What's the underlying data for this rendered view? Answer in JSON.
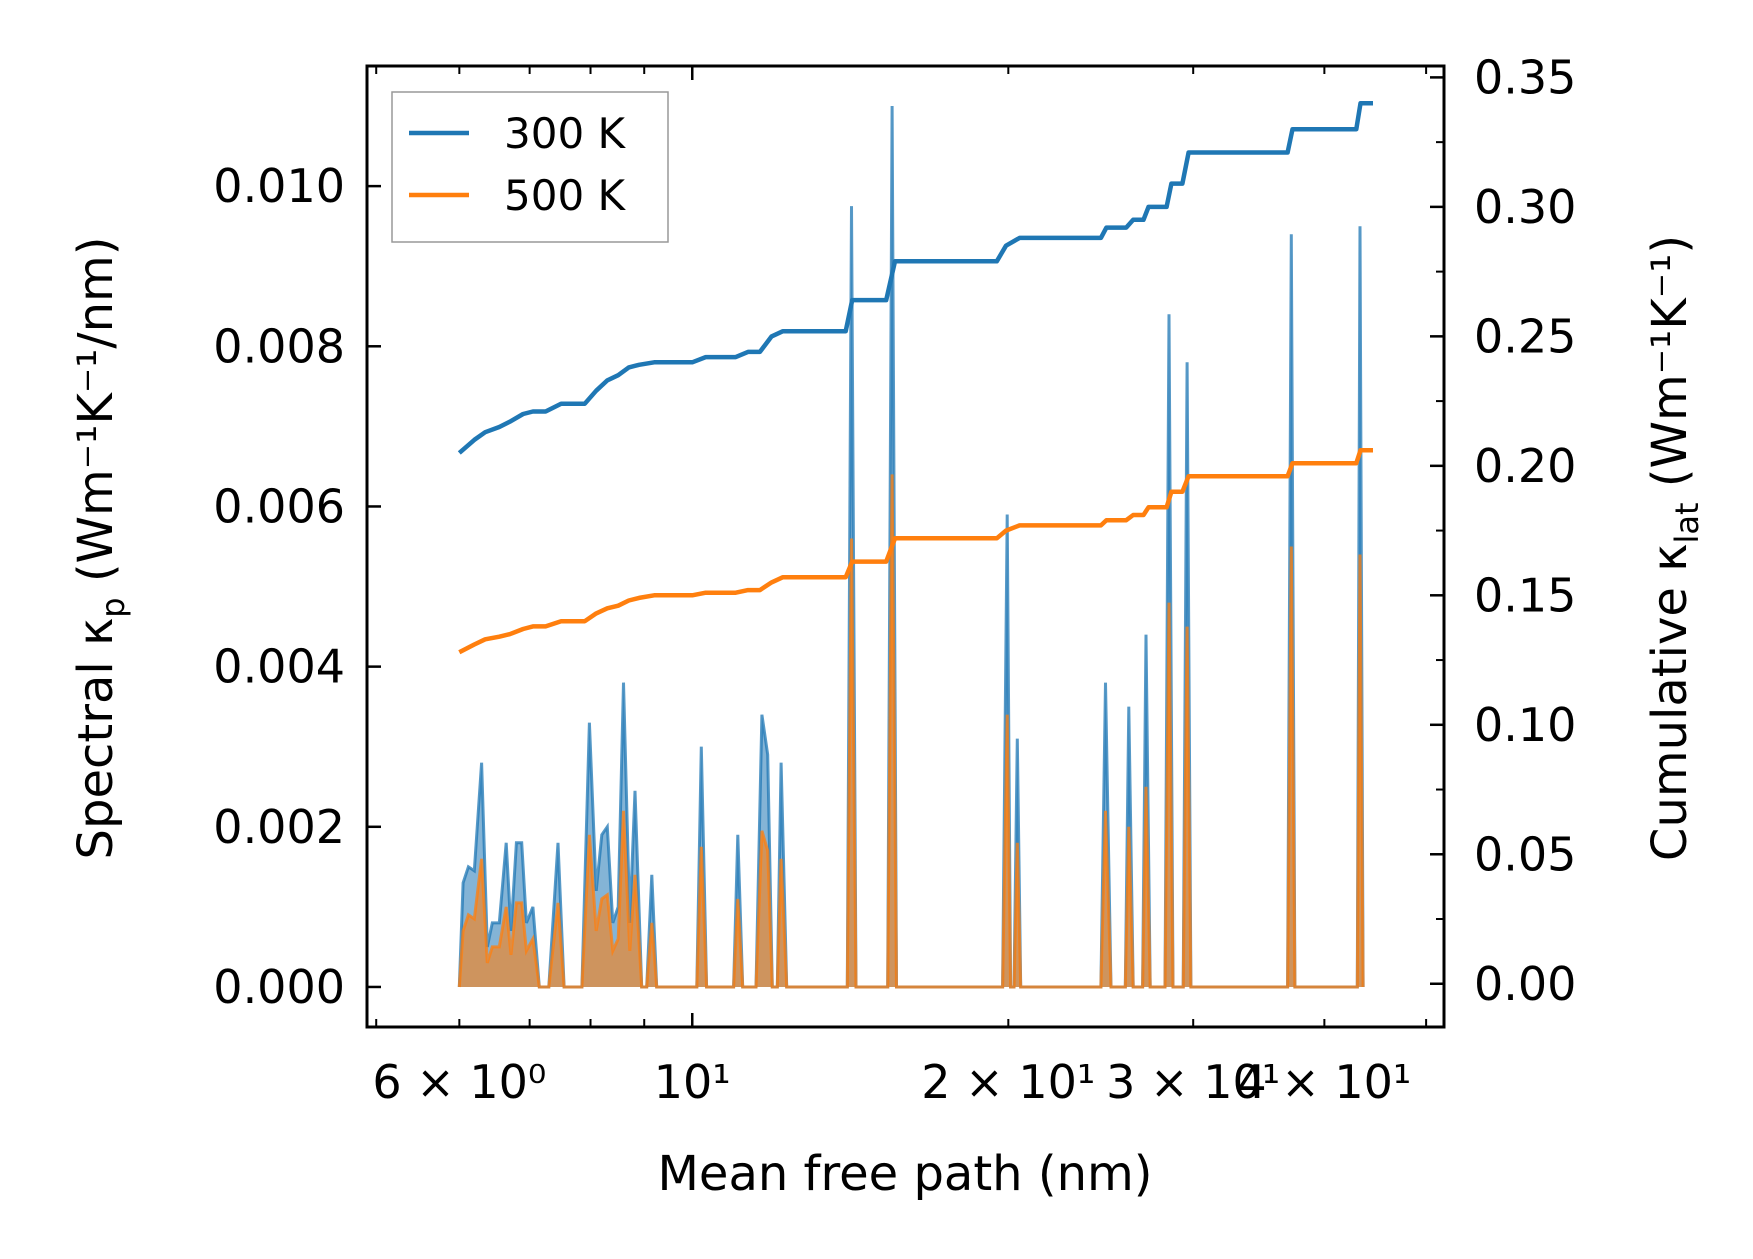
{
  "chart_data": {
    "type": "line",
    "xlabel": "Mean free path (nm)",
    "ylabel_left": {
      "main": "Spectral κ",
      "sub": "p",
      "unit": " (Wm⁻¹K⁻¹/nm)"
    },
    "ylabel_right": {
      "main": "Cumulative κ",
      "sub": "lat",
      "unit": " (Wm⁻¹K⁻¹)"
    },
    "x_scale": "log",
    "xlim": [
      4.9,
      52
    ],
    "ylim_left": [
      -0.0005,
      0.0115
    ],
    "ylim_right": [
      -0.0167,
      0.3544
    ],
    "x_ticks": [
      {
        "value": 6,
        "label": "6 × 10⁰"
      },
      {
        "value": 10,
        "label": "10¹"
      },
      {
        "value": 20,
        "label": "2 × 10¹"
      },
      {
        "value": 30,
        "label": "3 × 10¹"
      },
      {
        "value": 40,
        "label": "4 × 10¹"
      }
    ],
    "y_ticks_left": [
      "0.000",
      "0.002",
      "0.004",
      "0.006",
      "0.008",
      "0.010"
    ],
    "y_ticks_right": [
      "0.00",
      "0.05",
      "0.10",
      "0.15",
      "0.20",
      "0.25",
      "0.30",
      "0.35"
    ],
    "legend": [
      {
        "label": "300 K",
        "color": "#1f77b4"
      },
      {
        "label": "500 K",
        "color": "#ff7f0e"
      }
    ],
    "spectral_series": [
      {
        "name": "300 K",
        "color": "#1f77b4",
        "points": [
          [
            6.0,
            0
          ],
          [
            6.05,
            0.0013
          ],
          [
            6.12,
            0.0015
          ],
          [
            6.2,
            0.00145
          ],
          [
            6.3,
            0.0028
          ],
          [
            6.38,
            0.0005
          ],
          [
            6.45,
            0.0008
          ],
          [
            6.55,
            0.0008
          ],
          [
            6.65,
            0.0018
          ],
          [
            6.72,
            0.0007
          ],
          [
            6.8,
            0.0018
          ],
          [
            6.88,
            0.0018
          ],
          [
            6.95,
            0.0008
          ],
          [
            7.05,
            0.001
          ],
          [
            7.15,
            0
          ],
          [
            7.3,
            0
          ],
          [
            7.45,
            0.0018
          ],
          [
            7.55,
            0
          ],
          [
            7.85,
            0
          ],
          [
            7.98,
            0.0033
          ],
          [
            8.1,
            0.0012
          ],
          [
            8.2,
            0.0019
          ],
          [
            8.3,
            0.002
          ],
          [
            8.4,
            0.0008
          ],
          [
            8.5,
            0.001
          ],
          [
            8.6,
            0.0038
          ],
          [
            8.72,
            0.0008
          ],
          [
            8.82,
            0.00245
          ],
          [
            8.95,
            0
          ],
          [
            9.05,
            0
          ],
          [
            9.15,
            0.0014
          ],
          [
            9.25,
            0
          ],
          [
            10.1,
            0
          ],
          [
            10.2,
            0.003
          ],
          [
            10.32,
            0
          ],
          [
            10.95,
            0
          ],
          [
            11.05,
            0.0019
          ],
          [
            11.17,
            0
          ],
          [
            11.5,
            0
          ],
          [
            11.65,
            0.0034
          ],
          [
            11.8,
            0.0029
          ],
          [
            11.92,
            0
          ],
          [
            12.05,
            0
          ],
          [
            12.15,
            0.0028
          ],
          [
            12.3,
            0
          ],
          [
            14.05,
            0
          ],
          [
            14.18,
            0.00975
          ],
          [
            14.32,
            0
          ],
          [
            15.35,
            0
          ],
          [
            15.5,
            0.011
          ],
          [
            15.65,
            0
          ],
          [
            19.75,
            0
          ],
          [
            19.95,
            0.0059
          ],
          [
            20.1,
            0
          ],
          [
            20.25,
            0
          ],
          [
            20.4,
            0.0031
          ],
          [
            20.55,
            0
          ],
          [
            24.5,
            0
          ],
          [
            24.75,
            0.0038
          ],
          [
            25.05,
            0
          ],
          [
            25.85,
            0
          ],
          [
            26.05,
            0.0035
          ],
          [
            26.3,
            0
          ],
          [
            26.85,
            0
          ],
          [
            27.05,
            0.0044
          ],
          [
            27.3,
            0
          ],
          [
            28.2,
            0
          ],
          [
            28.45,
            0.0084
          ],
          [
            28.7,
            0
          ],
          [
            29.35,
            0
          ],
          [
            29.6,
            0.0078
          ],
          [
            29.85,
            0
          ],
          [
            36.9,
            0
          ],
          [
            37.2,
            0.0094
          ],
          [
            37.5,
            0
          ],
          [
            43.0,
            0
          ],
          [
            43.25,
            0.0095
          ],
          [
            43.55,
            0
          ]
        ]
      },
      {
        "name": "500 K",
        "color": "#ff7f0e",
        "points": [
          [
            6.0,
            0
          ],
          [
            6.05,
            0.0007
          ],
          [
            6.12,
            0.0009
          ],
          [
            6.2,
            0.00085
          ],
          [
            6.3,
            0.0016
          ],
          [
            6.38,
            0.0003
          ],
          [
            6.45,
            0.0005
          ],
          [
            6.55,
            0.0005
          ],
          [
            6.65,
            0.001
          ],
          [
            6.72,
            0.0004
          ],
          [
            6.8,
            0.00105
          ],
          [
            6.88,
            0.00105
          ],
          [
            6.95,
            0.00045
          ],
          [
            7.05,
            0.0006
          ],
          [
            7.15,
            0
          ],
          [
            7.3,
            0
          ],
          [
            7.45,
            0.00105
          ],
          [
            7.55,
            0
          ],
          [
            7.85,
            0
          ],
          [
            7.98,
            0.0019
          ],
          [
            8.1,
            0.0007
          ],
          [
            8.2,
            0.0011
          ],
          [
            8.3,
            0.00115
          ],
          [
            8.4,
            0.00045
          ],
          [
            8.5,
            0.0006
          ],
          [
            8.6,
            0.0022
          ],
          [
            8.72,
            0.00045
          ],
          [
            8.82,
            0.0014
          ],
          [
            8.95,
            0
          ],
          [
            9.05,
            0
          ],
          [
            9.15,
            0.0008
          ],
          [
            9.25,
            0
          ],
          [
            10.1,
            0
          ],
          [
            10.2,
            0.00175
          ],
          [
            10.32,
            0
          ],
          [
            10.95,
            0
          ],
          [
            11.05,
            0.0011
          ],
          [
            11.17,
            0
          ],
          [
            11.5,
            0
          ],
          [
            11.65,
            0.00195
          ],
          [
            11.8,
            0.0017
          ],
          [
            11.92,
            0
          ],
          [
            12.05,
            0
          ],
          [
            12.15,
            0.0016
          ],
          [
            12.3,
            0
          ],
          [
            14.05,
            0
          ],
          [
            14.18,
            0.0056
          ],
          [
            14.32,
            0
          ],
          [
            15.35,
            0
          ],
          [
            15.5,
            0.0064
          ],
          [
            15.65,
            0
          ],
          [
            19.75,
            0
          ],
          [
            19.95,
            0.0034
          ],
          [
            20.1,
            0
          ],
          [
            20.25,
            0
          ],
          [
            20.4,
            0.0018
          ],
          [
            20.55,
            0
          ],
          [
            24.5,
            0
          ],
          [
            24.75,
            0.0022
          ],
          [
            25.05,
            0
          ],
          [
            25.85,
            0
          ],
          [
            26.05,
            0.002
          ],
          [
            26.3,
            0
          ],
          [
            26.85,
            0
          ],
          [
            27.05,
            0.0025
          ],
          [
            27.3,
            0
          ],
          [
            28.2,
            0
          ],
          [
            28.45,
            0.0048
          ],
          [
            28.7,
            0
          ],
          [
            29.35,
            0
          ],
          [
            29.6,
            0.0045
          ],
          [
            29.85,
            0
          ],
          [
            36.9,
            0
          ],
          [
            37.2,
            0.0055
          ],
          [
            37.5,
            0
          ],
          [
            43.0,
            0
          ],
          [
            43.25,
            0.0054
          ],
          [
            43.55,
            0
          ]
        ]
      }
    ],
    "cumulative_series": [
      {
        "name": "300 K",
        "color": "#1f77b4",
        "points": [
          [
            6.0,
            0.205
          ],
          [
            6.2,
            0.21
          ],
          [
            6.35,
            0.213
          ],
          [
            6.55,
            0.215
          ],
          [
            6.7,
            0.217
          ],
          [
            6.9,
            0.22
          ],
          [
            7.05,
            0.221
          ],
          [
            7.25,
            0.221
          ],
          [
            7.5,
            0.224
          ],
          [
            7.9,
            0.224
          ],
          [
            8.1,
            0.229
          ],
          [
            8.3,
            0.233
          ],
          [
            8.5,
            0.235
          ],
          [
            8.7,
            0.238
          ],
          [
            8.9,
            0.239
          ],
          [
            9.2,
            0.24
          ],
          [
            10.0,
            0.24
          ],
          [
            10.3,
            0.242
          ],
          [
            11.0,
            0.242
          ],
          [
            11.3,
            0.244
          ],
          [
            11.6,
            0.244
          ],
          [
            11.9,
            0.25
          ],
          [
            12.2,
            0.252
          ],
          [
            14.0,
            0.252
          ],
          [
            14.2,
            0.264
          ],
          [
            15.3,
            0.264
          ],
          [
            15.6,
            0.279
          ],
          [
            19.5,
            0.279
          ],
          [
            19.9,
            0.285
          ],
          [
            20.5,
            0.288
          ],
          [
            24.5,
            0.288
          ],
          [
            24.8,
            0.292
          ],
          [
            25.9,
            0.292
          ],
          [
            26.3,
            0.295
          ],
          [
            26.9,
            0.295
          ],
          [
            27.2,
            0.3
          ],
          [
            28.3,
            0.3
          ],
          [
            28.6,
            0.309
          ],
          [
            29.3,
            0.309
          ],
          [
            29.7,
            0.321
          ],
          [
            36.9,
            0.321
          ],
          [
            37.3,
            0.33
          ],
          [
            42.9,
            0.33
          ],
          [
            43.3,
            0.34
          ],
          [
            44.5,
            0.34
          ]
        ]
      },
      {
        "name": "500 K",
        "color": "#ff7f0e",
        "points": [
          [
            6.0,
            0.128
          ],
          [
            6.2,
            0.131
          ],
          [
            6.35,
            0.133
          ],
          [
            6.55,
            0.134
          ],
          [
            6.7,
            0.135
          ],
          [
            6.9,
            0.137
          ],
          [
            7.05,
            0.138
          ],
          [
            7.25,
            0.138
          ],
          [
            7.5,
            0.14
          ],
          [
            7.9,
            0.14
          ],
          [
            8.1,
            0.143
          ],
          [
            8.3,
            0.145
          ],
          [
            8.5,
            0.146
          ],
          [
            8.7,
            0.148
          ],
          [
            8.9,
            0.149
          ],
          [
            9.2,
            0.15
          ],
          [
            10.0,
            0.15
          ],
          [
            10.3,
            0.151
          ],
          [
            11.0,
            0.151
          ],
          [
            11.3,
            0.152
          ],
          [
            11.6,
            0.152
          ],
          [
            11.9,
            0.155
          ],
          [
            12.2,
            0.157
          ],
          [
            14.0,
            0.157
          ],
          [
            14.2,
            0.163
          ],
          [
            15.3,
            0.163
          ],
          [
            15.6,
            0.172
          ],
          [
            19.5,
            0.172
          ],
          [
            19.9,
            0.175
          ],
          [
            20.5,
            0.177
          ],
          [
            24.5,
            0.177
          ],
          [
            24.8,
            0.179
          ],
          [
            25.9,
            0.179
          ],
          [
            26.3,
            0.181
          ],
          [
            26.9,
            0.181
          ],
          [
            27.2,
            0.184
          ],
          [
            28.3,
            0.184
          ],
          [
            28.6,
            0.19
          ],
          [
            29.3,
            0.19
          ],
          [
            29.7,
            0.196
          ],
          [
            36.9,
            0.196
          ],
          [
            37.3,
            0.201
          ],
          [
            42.9,
            0.201
          ],
          [
            43.3,
            0.206
          ],
          [
            44.5,
            0.206
          ]
        ]
      }
    ]
  }
}
